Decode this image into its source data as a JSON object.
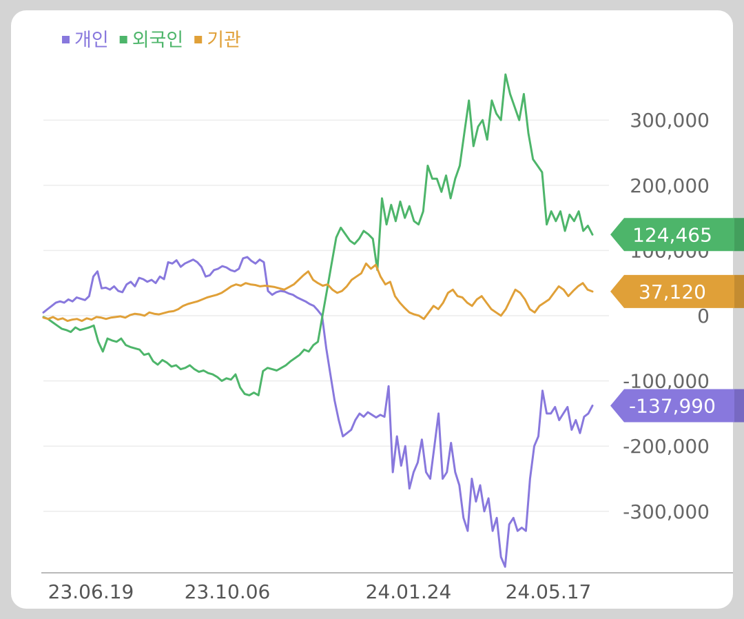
{
  "chart_data": {
    "type": "line",
    "x_ticks": [
      "23.06.19",
      "23.10.06",
      "24.01.24",
      "24.05.17"
    ],
    "y_ticks": [
      300000,
      200000,
      100000,
      0,
      -100000,
      -200000,
      -300000
    ],
    "y_tick_labels": [
      "300,000",
      "200,000",
      "100,000",
      "0",
      "-100,000",
      "-200,000",
      "-300,000"
    ],
    "ylim": [
      -395000,
      385000
    ],
    "grid": true,
    "legend_position": "top-left",
    "series": [
      {
        "name": "개인",
        "color": "#8878dd",
        "last_value": -137990,
        "last_label": "-137,990",
        "values": [
          5000,
          10000,
          15000,
          20000,
          22000,
          20000,
          25000,
          22000,
          28000,
          26000,
          24000,
          30000,
          60000,
          68000,
          42000,
          43000,
          40000,
          45000,
          38000,
          36000,
          48000,
          52000,
          45000,
          58000,
          56000,
          52000,
          55000,
          50000,
          60000,
          56000,
          82000,
          80000,
          85000,
          75000,
          80000,
          83000,
          86000,
          82000,
          75000,
          60000,
          62000,
          70000,
          72000,
          76000,
          74000,
          70000,
          68000,
          72000,
          88000,
          90000,
          84000,
          80000,
          86000,
          82000,
          38000,
          32000,
          36000,
          38000,
          37000,
          34000,
          32000,
          28000,
          25000,
          22000,
          18000,
          15000,
          8000,
          0,
          -50000,
          -90000,
          -130000,
          -160000,
          -185000,
          -180000,
          -175000,
          -160000,
          -150000,
          -155000,
          -148000,
          -152000,
          -156000,
          -152000,
          -155000,
          -108000,
          -240000,
          -185000,
          -230000,
          -200000,
          -265000,
          -240000,
          -225000,
          -190000,
          -240000,
          -250000,
          -200000,
          -150000,
          -250000,
          -240000,
          -195000,
          -240000,
          -260000,
          -310000,
          -330000,
          -250000,
          -285000,
          -260000,
          -300000,
          -280000,
          -330000,
          -310000,
          -370000,
          -385000,
          -320000,
          -310000,
          -330000,
          -325000,
          -330000,
          -250000,
          -200000,
          -185000,
          -115000,
          -150000,
          -150000,
          -140000,
          -160000,
          -150000,
          -140000,
          -175000,
          -160000,
          -180000,
          -155000,
          -150000,
          -138000
        ]
      },
      {
        "name": "외국인",
        "color": "#4db56a",
        "last_value": 124465,
        "last_label": "124,465",
        "values": [
          -2000,
          -5000,
          -10000,
          -15000,
          -20000,
          -22000,
          -25000,
          -18000,
          -22000,
          -20000,
          -18000,
          -15000,
          -40000,
          -55000,
          -35000,
          -38000,
          -40000,
          -35000,
          -45000,
          -48000,
          -50000,
          -52000,
          -60000,
          -58000,
          -70000,
          -75000,
          -68000,
          -72000,
          -78000,
          -76000,
          -82000,
          -80000,
          -76000,
          -82000,
          -86000,
          -84000,
          -88000,
          -90000,
          -94000,
          -100000,
          -96000,
          -98000,
          -90000,
          -110000,
          -120000,
          -122000,
          -118000,
          -122000,
          -85000,
          -80000,
          -82000,
          -84000,
          -80000,
          -76000,
          -70000,
          -65000,
          -60000,
          -52000,
          -55000,
          -45000,
          -40000,
          0,
          40000,
          80000,
          120000,
          135000,
          125000,
          115000,
          110000,
          118000,
          130000,
          125000,
          118000,
          70000,
          180000,
          140000,
          170000,
          145000,
          175000,
          150000,
          168000,
          145000,
          140000,
          160000,
          230000,
          210000,
          210000,
          190000,
          215000,
          180000,
          210000,
          230000,
          280000,
          330000,
          260000,
          290000,
          300000,
          270000,
          330000,
          310000,
          300000,
          370000,
          340000,
          320000,
          300000,
          340000,
          280000,
          240000,
          230000,
          220000,
          140000,
          160000,
          145000,
          160000,
          130000,
          155000,
          145000,
          160000,
          130000,
          138000,
          124465
        ]
      },
      {
        "name": "기관",
        "color": "#e0a038",
        "last_value": 37120,
        "last_label": "37,120",
        "values": [
          -3000,
          -5000,
          -2000,
          -6000,
          -4000,
          -8000,
          -6000,
          -5000,
          -8000,
          -4000,
          -6000,
          -2000,
          -3000,
          -5000,
          -3000,
          -2000,
          -1000,
          -3000,
          1000,
          3000,
          2000,
          0,
          5000,
          3000,
          2000,
          4000,
          6000,
          7000,
          10000,
          15000,
          18000,
          20000,
          22000,
          25000,
          28000,
          30000,
          32000,
          35000,
          40000,
          45000,
          48000,
          46000,
          50000,
          48000,
          47000,
          45000,
          46000,
          45000,
          44000,
          42000,
          40000,
          44000,
          48000,
          55000,
          62000,
          68000,
          55000,
          50000,
          46000,
          48000,
          40000,
          35000,
          38000,
          45000,
          55000,
          60000,
          65000,
          80000,
          72000,
          78000,
          60000,
          48000,
          52000,
          30000,
          20000,
          12000,
          5000,
          2000,
          0,
          -5000,
          5000,
          15000,
          10000,
          20000,
          35000,
          40000,
          30000,
          28000,
          20000,
          15000,
          25000,
          30000,
          20000,
          10000,
          5000,
          0,
          10000,
          25000,
          40000,
          35000,
          25000,
          10000,
          5000,
          15000,
          20000,
          25000,
          35000,
          45000,
          40000,
          30000,
          38000,
          45000,
          50000,
          40000,
          37120
        ]
      }
    ]
  }
}
